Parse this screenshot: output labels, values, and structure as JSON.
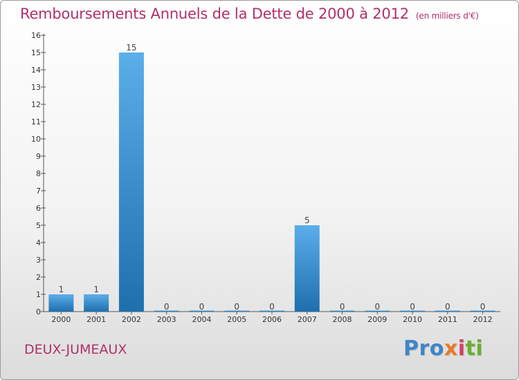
{
  "title": "Remboursements Annuels de la Dette de 2000 à 2012",
  "unit": "(en milliers d'€)",
  "town": "DEUX-JUMEAUX",
  "logo": {
    "p1": "Pro",
    "p2": "x",
    "p3": "i",
    "p4": "ti"
  },
  "colors": {
    "title": "#b0306a",
    "bar_top": "#5aaee9",
    "bar_bottom": "#1f6fad"
  },
  "chart_data": {
    "type": "bar",
    "title": "Remboursements Annuels de la Dette de 2000 à 2012",
    "xlabel": "",
    "ylabel": "",
    "categories": [
      "2000",
      "2001",
      "2002",
      "2003",
      "2004",
      "2005",
      "2006",
      "2007",
      "2008",
      "2009",
      "2010",
      "2011",
      "2012"
    ],
    "values": [
      1,
      1,
      15,
      0,
      0,
      0,
      0,
      5,
      0,
      0,
      0,
      0,
      0
    ],
    "ylim": [
      0,
      16
    ],
    "yticks": [
      "0",
      "1",
      "2",
      "3",
      "4",
      "5",
      "6",
      "7",
      "8",
      "9",
      "10",
      "11",
      "12",
      "13",
      "14",
      "15",
      "16"
    ],
    "grid": false,
    "legend": "none"
  }
}
